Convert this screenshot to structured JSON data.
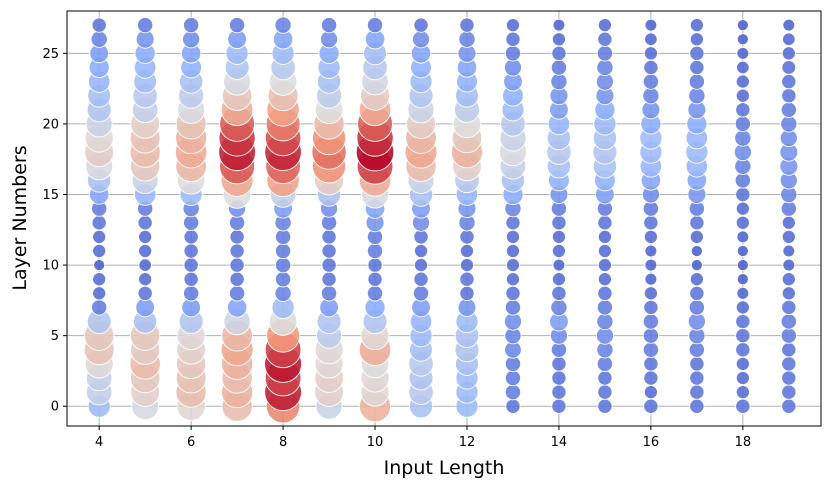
{
  "chart_data": {
    "type": "scatter",
    "title": "",
    "xlabel": "Input Length",
    "ylabel": "Layer Numbers",
    "xlim": [
      3.3,
      19.7
    ],
    "ylim": [
      -1.4,
      28.0
    ],
    "xticks": [
      4,
      6,
      8,
      10,
      12,
      14,
      16,
      18
    ],
    "yticks": [
      0,
      5,
      10,
      15,
      20,
      25
    ],
    "grid": true,
    "legend": "none",
    "encoding": {
      "x": "input length",
      "y": "layer number",
      "value": "bubble size and color (coolwarm colormap, blue = low, red = high)"
    },
    "value_range": [
      0,
      1
    ],
    "colormap": "coolwarm",
    "layers": [
      0,
      1,
      2,
      3,
      4,
      5,
      6,
      7,
      8,
      9,
      10,
      11,
      12,
      13,
      14,
      15,
      16,
      17,
      18,
      19,
      20,
      21,
      22,
      23,
      24,
      25,
      26,
      27
    ],
    "x": [
      4,
      5,
      6,
      7,
      8,
      9,
      10,
      11,
      12,
      13,
      14,
      15,
      16,
      17,
      18,
      19
    ],
    "values": [
      [
        0.3,
        0.47,
        0.53,
        0.62,
        0.78,
        0.44,
        0.66,
        0.34,
        0.3,
        0.1,
        0.1,
        0.1,
        0.1,
        0.1,
        0.1,
        0.1
      ],
      [
        0.42,
        0.55,
        0.62,
        0.66,
        0.96,
        0.55,
        0.52,
        0.38,
        0.3,
        0.12,
        0.1,
        0.1,
        0.08,
        0.1,
        0.08,
        0.1
      ],
      [
        0.42,
        0.58,
        0.6,
        0.62,
        0.9,
        0.55,
        0.52,
        0.36,
        0.3,
        0.12,
        0.1,
        0.1,
        0.1,
        0.1,
        0.08,
        0.1
      ],
      [
        0.52,
        0.63,
        0.58,
        0.66,
        0.97,
        0.52,
        0.5,
        0.38,
        0.33,
        0.12,
        0.1,
        0.12,
        0.1,
        0.1,
        0.08,
        0.1
      ],
      [
        0.6,
        0.57,
        0.55,
        0.7,
        0.9,
        0.52,
        0.68,
        0.32,
        0.36,
        0.15,
        0.12,
        0.14,
        0.12,
        0.12,
        0.1,
        0.1
      ],
      [
        0.58,
        0.58,
        0.52,
        0.64,
        0.75,
        0.4,
        0.52,
        0.3,
        0.35,
        0.14,
        0.16,
        0.16,
        0.12,
        0.14,
        0.1,
        0.12
      ],
      [
        0.36,
        0.34,
        0.36,
        0.45,
        0.5,
        0.36,
        0.36,
        0.28,
        0.3,
        0.16,
        0.2,
        0.14,
        0.12,
        0.16,
        0.1,
        0.12
      ],
      [
        0.12,
        0.2,
        0.2,
        0.22,
        0.3,
        0.2,
        0.24,
        0.2,
        0.18,
        0.12,
        0.14,
        0.12,
        0.1,
        0.12,
        0.08,
        0.1
      ],
      [
        0.08,
        0.1,
        0.12,
        0.12,
        0.14,
        0.12,
        0.12,
        0.12,
        0.1,
        0.1,
        0.1,
        0.1,
        0.08,
        0.1,
        0.06,
        0.08
      ],
      [
        0.08,
        0.08,
        0.1,
        0.1,
        0.12,
        0.1,
        0.1,
        0.1,
        0.1,
        0.08,
        0.08,
        0.08,
        0.06,
        0.08,
        0.05,
        0.08
      ],
      [
        0.05,
        0.07,
        0.1,
        0.1,
        0.12,
        0.1,
        0.1,
        0.08,
        0.08,
        0.08,
        0.06,
        0.08,
        0.06,
        0.05,
        0.05,
        0.06
      ],
      [
        0.08,
        0.08,
        0.1,
        0.1,
        0.12,
        0.1,
        0.12,
        0.08,
        0.08,
        0.08,
        0.08,
        0.08,
        0.06,
        0.05,
        0.05,
        0.06
      ],
      [
        0.08,
        0.08,
        0.1,
        0.1,
        0.12,
        0.1,
        0.12,
        0.1,
        0.1,
        0.08,
        0.08,
        0.08,
        0.08,
        0.08,
        0.06,
        0.08
      ],
      [
        0.1,
        0.1,
        0.12,
        0.12,
        0.14,
        0.12,
        0.18,
        0.16,
        0.14,
        0.1,
        0.1,
        0.1,
        0.1,
        0.1,
        0.08,
        0.08
      ],
      [
        0.12,
        0.12,
        0.14,
        0.16,
        0.2,
        0.16,
        0.22,
        0.2,
        0.18,
        0.14,
        0.12,
        0.12,
        0.12,
        0.12,
        0.08,
        0.12
      ],
      [
        0.22,
        0.28,
        0.3,
        0.5,
        0.42,
        0.34,
        0.48,
        0.34,
        0.28,
        0.24,
        0.18,
        0.2,
        0.16,
        0.18,
        0.1,
        0.14
      ],
      [
        0.34,
        0.44,
        0.5,
        0.7,
        0.72,
        0.56,
        0.68,
        0.44,
        0.38,
        0.34,
        0.26,
        0.26,
        0.22,
        0.22,
        0.12,
        0.16
      ],
      [
        0.48,
        0.58,
        0.64,
        0.86,
        0.84,
        0.76,
        0.9,
        0.62,
        0.55,
        0.42,
        0.34,
        0.34,
        0.28,
        0.28,
        0.14,
        0.18
      ],
      [
        0.56,
        0.62,
        0.68,
        0.96,
        0.95,
        0.82,
        1.0,
        0.7,
        0.66,
        0.48,
        0.38,
        0.36,
        0.3,
        0.3,
        0.16,
        0.18
      ],
      [
        0.52,
        0.6,
        0.66,
        0.92,
        0.88,
        0.76,
        0.93,
        0.64,
        0.58,
        0.44,
        0.34,
        0.34,
        0.3,
        0.28,
        0.14,
        0.16
      ],
      [
        0.44,
        0.55,
        0.6,
        0.85,
        0.8,
        0.62,
        0.85,
        0.56,
        0.5,
        0.38,
        0.28,
        0.3,
        0.24,
        0.24,
        0.12,
        0.14
      ],
      [
        0.36,
        0.42,
        0.48,
        0.68,
        0.72,
        0.5,
        0.68,
        0.44,
        0.4,
        0.3,
        0.2,
        0.24,
        0.18,
        0.18,
        0.1,
        0.12
      ],
      [
        0.32,
        0.38,
        0.4,
        0.58,
        0.6,
        0.4,
        0.56,
        0.36,
        0.32,
        0.26,
        0.18,
        0.18,
        0.14,
        0.14,
        0.08,
        0.1
      ],
      [
        0.28,
        0.32,
        0.34,
        0.48,
        0.5,
        0.34,
        0.46,
        0.3,
        0.26,
        0.2,
        0.14,
        0.16,
        0.12,
        0.12,
        0.08,
        0.1
      ],
      [
        0.24,
        0.28,
        0.26,
        0.36,
        0.38,
        0.3,
        0.38,
        0.26,
        0.22,
        0.16,
        0.12,
        0.14,
        0.1,
        0.1,
        0.07,
        0.09
      ],
      [
        0.2,
        0.24,
        0.22,
        0.3,
        0.3,
        0.24,
        0.32,
        0.22,
        0.18,
        0.12,
        0.1,
        0.12,
        0.08,
        0.1,
        0.06,
        0.08
      ],
      [
        0.14,
        0.18,
        0.16,
        0.2,
        0.22,
        0.16,
        0.22,
        0.16,
        0.14,
        0.1,
        0.08,
        0.1,
        0.07,
        0.08,
        0.05,
        0.07
      ],
      [
        0.1,
        0.12,
        0.12,
        0.12,
        0.14,
        0.12,
        0.12,
        0.1,
        0.1,
        0.08,
        0.06,
        0.08,
        0.06,
        0.08,
        0.05,
        0.06
      ]
    ]
  }
}
